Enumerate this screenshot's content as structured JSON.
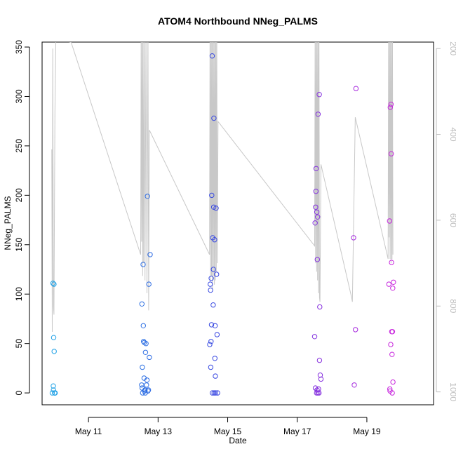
{
  "chart_data": {
    "type": "scatter",
    "title": "ATOM4 Northbound NNeg_PALMS",
    "xlabel": "Date",
    "ylabel": "NNeg_PALMS",
    "x_axis": {
      "type": "date",
      "range": [
        "2018-05-09 16:00",
        "2018-05-20 22:00"
      ],
      "ticks": [
        {
          "value": "2018-05-11",
          "label": "May 11"
        },
        {
          "value": "2018-05-13",
          "label": "May 13"
        },
        {
          "value": "2018-05-15",
          "label": "May 15"
        },
        {
          "value": "2018-05-17",
          "label": "May 17"
        },
        {
          "value": "2018-05-19",
          "label": "May 19"
        }
      ]
    },
    "y_axis": {
      "range": [
        -12,
        355
      ],
      "ticks": [
        0,
        50,
        100,
        150,
        200,
        250,
        300,
        350
      ]
    },
    "y2_axis": {
      "reversed": true,
      "range": [
        1030,
        185
      ],
      "ticks": [
        200,
        400,
        600,
        800,
        1000
      ],
      "color": "#bdbdbd"
    },
    "grid": false,
    "legend": "none",
    "colors": {
      "start": "#1ea8e6",
      "middle": "#3b3ae0",
      "end": "#ee20dc",
      "line": "#c8c8c8"
    },
    "series": [
      {
        "marker": "circle",
        "points": [
          {
            "x": "2018-05-09 23:00",
            "y": 0
          },
          {
            "x": "2018-05-09 23:30",
            "y": 111
          },
          {
            "x": "2018-05-09 23:45",
            "y": 7
          },
          {
            "x": "2018-05-09 23:50",
            "y": 3
          },
          {
            "x": "2018-05-10 00:00",
            "y": 56
          },
          {
            "x": "2018-05-10 00:10",
            "y": 110
          },
          {
            "x": "2018-05-10 00:20",
            "y": 42
          },
          {
            "x": "2018-05-10 00:40",
            "y": 0
          },
          {
            "x": "2018-05-10 00:50",
            "y": 0
          },
          {
            "x": "2018-05-10 01:00",
            "y": 0
          },
          {
            "x": "2018-05-12 12:40",
            "y": 8
          },
          {
            "x": "2018-05-12 12:50",
            "y": 90
          },
          {
            "x": "2018-05-12 13:00",
            "y": 5
          },
          {
            "x": "2018-05-12 13:10",
            "y": 26
          },
          {
            "x": "2018-05-12 13:20",
            "y": 0
          },
          {
            "x": "2018-05-12 13:40",
            "y": 130
          },
          {
            "x": "2018-05-12 13:50",
            "y": 68
          },
          {
            "x": "2018-05-12 14:00",
            "y": 52
          },
          {
            "x": "2018-05-12 14:20",
            "y": 15
          },
          {
            "x": "2018-05-12 14:30",
            "y": 51
          },
          {
            "x": "2018-05-12 14:40",
            "y": 2
          },
          {
            "x": "2018-05-12 15:00",
            "y": 3
          },
          {
            "x": "2018-05-12 15:10",
            "y": 0
          },
          {
            "x": "2018-05-12 15:20",
            "y": 41
          },
          {
            "x": "2018-05-12 15:40",
            "y": 50
          },
          {
            "x": "2018-05-12 16:00",
            "y": 8
          },
          {
            "x": "2018-05-12 16:20",
            "y": 13
          },
          {
            "x": "2018-05-12 16:40",
            "y": 199
          },
          {
            "x": "2018-05-12 17:00",
            "y": 2
          },
          {
            "x": "2018-05-12 17:20",
            "y": 3
          },
          {
            "x": "2018-05-12 17:40",
            "y": 110
          },
          {
            "x": "2018-05-12 18:00",
            "y": 36
          },
          {
            "x": "2018-05-12 18:30",
            "y": 140
          },
          {
            "x": "2018-05-14 11:40",
            "y": 49
          },
          {
            "x": "2018-05-14 12:00",
            "y": 110
          },
          {
            "x": "2018-05-14 12:10",
            "y": 104
          },
          {
            "x": "2018-05-14 12:20",
            "y": 26
          },
          {
            "x": "2018-05-14 12:30",
            "y": 52
          },
          {
            "x": "2018-05-14 12:40",
            "y": 116
          },
          {
            "x": "2018-05-14 12:50",
            "y": 69
          },
          {
            "x": "2018-05-14 13:00",
            "y": 200
          },
          {
            "x": "2018-05-14 13:20",
            "y": 341
          },
          {
            "x": "2018-05-14 13:30",
            "y": 0
          },
          {
            "x": "2018-05-14 13:40",
            "y": 157
          },
          {
            "x": "2018-05-14 14:00",
            "y": 89
          },
          {
            "x": "2018-05-14 14:10",
            "y": 125
          },
          {
            "x": "2018-05-14 14:20",
            "y": 188
          },
          {
            "x": "2018-05-14 14:30",
            "y": 278
          },
          {
            "x": "2018-05-14 14:40",
            "y": 0
          },
          {
            "x": "2018-05-14 15:00",
            "y": 155
          },
          {
            "x": "2018-05-14 15:10",
            "y": 35
          },
          {
            "x": "2018-05-14 15:20",
            "y": 68
          },
          {
            "x": "2018-05-14 15:30",
            "y": 17
          },
          {
            "x": "2018-05-14 15:40",
            "y": 0
          },
          {
            "x": "2018-05-14 16:00",
            "y": 187
          },
          {
            "x": "2018-05-14 16:20",
            "y": 120
          },
          {
            "x": "2018-05-14 16:40",
            "y": 59
          },
          {
            "x": "2018-05-14 17:00",
            "y": 0
          },
          {
            "x": "2018-05-17 12:00",
            "y": 57
          },
          {
            "x": "2018-05-17 12:20",
            "y": 172
          },
          {
            "x": "2018-05-17 12:30",
            "y": 5
          },
          {
            "x": "2018-05-17 12:40",
            "y": 188
          },
          {
            "x": "2018-05-17 12:50",
            "y": 204
          },
          {
            "x": "2018-05-17 13:00",
            "y": 227
          },
          {
            "x": "2018-05-17 13:20",
            "y": 0
          },
          {
            "x": "2018-05-17 13:30",
            "y": 183
          },
          {
            "x": "2018-05-17 13:40",
            "y": 3
          },
          {
            "x": "2018-05-17 13:50",
            "y": 135
          },
          {
            "x": "2018-05-17 14:00",
            "y": 178
          },
          {
            "x": "2018-05-17 14:10",
            "y": 0
          },
          {
            "x": "2018-05-17 14:20",
            "y": 282
          },
          {
            "x": "2018-05-17 14:40",
            "y": 4
          },
          {
            "x": "2018-05-17 15:00",
            "y": 0
          },
          {
            "x": "2018-05-17 15:10",
            "y": 302
          },
          {
            "x": "2018-05-17 15:20",
            "y": 33
          },
          {
            "x": "2018-05-17 15:30",
            "y": 87
          },
          {
            "x": "2018-05-17 15:50",
            "y": 18
          },
          {
            "x": "2018-05-17 16:20",
            "y": 14
          },
          {
            "x": "2018-05-18 14:50",
            "y": 157
          },
          {
            "x": "2018-05-18 15:20",
            "y": 8
          },
          {
            "x": "2018-05-18 16:10",
            "y": 64
          },
          {
            "x": "2018-05-18 16:30",
            "y": 308
          },
          {
            "x": "2018-05-19 15:10",
            "y": 110
          },
          {
            "x": "2018-05-19 15:40",
            "y": 174
          },
          {
            "x": "2018-05-19 15:50",
            "y": 4
          },
          {
            "x": "2018-05-19 16:00",
            "y": 2
          },
          {
            "x": "2018-05-19 16:10",
            "y": 289
          },
          {
            "x": "2018-05-19 16:30",
            "y": 49
          },
          {
            "x": "2018-05-19 16:40",
            "y": 292
          },
          {
            "x": "2018-05-19 16:50",
            "y": 242
          },
          {
            "x": "2018-05-19 17:00",
            "y": 132
          },
          {
            "x": "2018-05-19 17:10",
            "y": 62
          },
          {
            "x": "2018-05-19 17:20",
            "y": 39
          },
          {
            "x": "2018-05-19 17:30",
            "y": 0
          },
          {
            "x": "2018-05-19 17:40",
            "y": 62
          },
          {
            "x": "2018-05-19 17:50",
            "y": 106
          },
          {
            "x": "2018-05-19 18:00",
            "y": 11
          },
          {
            "x": "2018-05-19 18:20",
            "y": 112
          }
        ]
      },
      {
        "axis": "y2",
        "type": "line",
        "points": [
          {
            "x": "2018-05-09 22:40",
            "y": 435
          },
          {
            "x": "2018-05-09 23:00",
            "y": 860
          },
          {
            "x": "2018-05-09 23:20",
            "y": 200
          },
          {
            "x": "2018-05-09 23:50",
            "y": 800
          },
          {
            "x": "2018-05-10 00:10",
            "y": 820
          },
          {
            "x": "2018-05-10 00:50",
            "y": 350
          },
          {
            "x": "2018-05-10 01:30",
            "y": 180
          },
          {
            "x": "2018-05-10 12:00",
            "y": 185
          },
          {
            "x": "2018-05-12 12:00",
            "y": 680
          },
          {
            "x": "2018-05-12 12:20",
            "y": 160
          },
          {
            "x": "2018-05-12 12:40",
            "y": 650
          },
          {
            "x": "2018-05-12 13:00",
            "y": 160
          },
          {
            "x": "2018-05-12 13:20",
            "y": 730
          },
          {
            "x": "2018-05-12 13:40",
            "y": 160
          },
          {
            "x": "2018-05-12 14:00",
            "y": 700
          },
          {
            "x": "2018-05-12 14:30",
            "y": 160
          },
          {
            "x": "2018-05-12 15:00",
            "y": 740
          },
          {
            "x": "2018-05-12 15:40",
            "y": 160
          },
          {
            "x": "2018-05-12 16:20",
            "y": 770
          },
          {
            "x": "2018-05-12 17:00",
            "y": 160
          },
          {
            "x": "2018-05-12 17:30",
            "y": 810
          },
          {
            "x": "2018-05-12 18:00",
            "y": 390
          },
          {
            "x": "2018-05-14 11:30",
            "y": 680
          },
          {
            "x": "2018-05-14 11:50",
            "y": 160
          },
          {
            "x": "2018-05-14 12:10",
            "y": 740
          },
          {
            "x": "2018-05-14 12:30",
            "y": 160
          },
          {
            "x": "2018-05-14 12:50",
            "y": 730
          },
          {
            "x": "2018-05-14 13:10",
            "y": 160
          },
          {
            "x": "2018-05-14 13:30",
            "y": 760
          },
          {
            "x": "2018-05-14 13:50",
            "y": 160
          },
          {
            "x": "2018-05-14 14:10",
            "y": 730
          },
          {
            "x": "2018-05-14 14:30",
            "y": 160
          },
          {
            "x": "2018-05-14 14:50",
            "y": 750
          },
          {
            "x": "2018-05-14 15:10",
            "y": 160
          },
          {
            "x": "2018-05-14 15:30",
            "y": 740
          },
          {
            "x": "2018-05-14 15:50",
            "y": 160
          },
          {
            "x": "2018-05-14 16:10",
            "y": 720
          },
          {
            "x": "2018-05-14 16:30",
            "y": 160
          },
          {
            "x": "2018-05-14 16:50",
            "y": 700
          },
          {
            "x": "2018-05-14 17:20",
            "y": 370
          },
          {
            "x": "2018-05-17 12:00",
            "y": 660
          },
          {
            "x": "2018-05-17 12:20",
            "y": 160
          },
          {
            "x": "2018-05-17 12:40",
            "y": 700
          },
          {
            "x": "2018-05-17 13:00",
            "y": 160
          },
          {
            "x": "2018-05-17 13:20",
            "y": 720
          },
          {
            "x": "2018-05-17 13:40",
            "y": 160
          },
          {
            "x": "2018-05-17 14:00",
            "y": 740
          },
          {
            "x": "2018-05-17 14:20",
            "y": 160
          },
          {
            "x": "2018-05-17 14:40",
            "y": 770
          },
          {
            "x": "2018-05-17 15:00",
            "y": 160
          },
          {
            "x": "2018-05-17 15:20",
            "y": 780
          },
          {
            "x": "2018-05-17 15:40",
            "y": 790
          },
          {
            "x": "2018-05-17 16:20",
            "y": 470
          },
          {
            "x": "2018-05-18 13:30",
            "y": 780
          },
          {
            "x": "2018-05-18 14:00",
            "y": 790
          },
          {
            "x": "2018-05-18 16:00",
            "y": 360
          },
          {
            "x": "2018-05-19 14:40",
            "y": 690
          },
          {
            "x": "2018-05-19 15:00",
            "y": 160
          },
          {
            "x": "2018-05-19 15:20",
            "y": 640
          },
          {
            "x": "2018-05-19 15:40",
            "y": 160
          },
          {
            "x": "2018-05-19 16:00",
            "y": 690
          },
          {
            "x": "2018-05-19 16:20",
            "y": 160
          },
          {
            "x": "2018-05-19 16:40",
            "y": 700
          },
          {
            "x": "2018-05-19 17:00",
            "y": 160
          },
          {
            "x": "2018-05-19 17:20",
            "y": 690
          },
          {
            "x": "2018-05-19 17:40",
            "y": 160
          },
          {
            "x": "2018-05-19 18:00",
            "y": 680
          }
        ]
      }
    ]
  }
}
